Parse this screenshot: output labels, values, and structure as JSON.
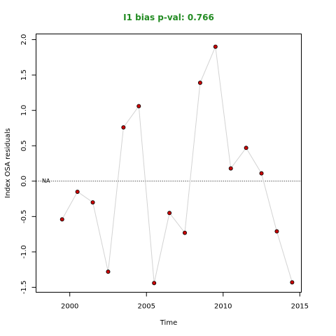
{
  "chart_data": {
    "type": "line",
    "title": "I1 bias p-val: 0.766",
    "xlabel": "Time",
    "ylabel": "Index OSA residuals",
    "xlim": [
      1997.8,
      2015.1
    ],
    "ylim": [
      -1.57,
      2.08
    ],
    "x_ticks": [
      2000,
      2005,
      2010,
      2015
    ],
    "y_ticks": [
      -1.5,
      -1.0,
      -0.5,
      0.0,
      0.5,
      1.0,
      1.5,
      2.0
    ],
    "x_tick_labels": [
      "2000",
      "2005",
      "2010",
      "2015"
    ],
    "y_tick_labels": [
      "-1.5",
      "-1.0",
      "-0.5",
      "0.0",
      "0.5",
      "1.0",
      "1.5",
      "2.0"
    ],
    "reference_line": 0,
    "annotation": "NA",
    "series": [
      {
        "x": [
          1999.5,
          2000.5,
          2001.5,
          2002.5,
          2003.5,
          2004.5,
          2005.5,
          2006.5,
          2007.5,
          2008.5,
          2009.5,
          2010.5,
          2011.5,
          2012.5,
          2013.5,
          2014.5
        ],
        "y": [
          -0.54,
          -0.15,
          -0.3,
          -1.28,
          0.76,
          1.06,
          -1.44,
          -0.45,
          -0.73,
          1.39,
          1.9,
          0.18,
          0.47,
          0.11,
          -0.71,
          -1.43
        ]
      }
    ],
    "colors": {
      "line": "#d3d3d3",
      "point_fill": "#cc0000",
      "point_stroke": "#000000",
      "title": "#228B22"
    },
    "grid": false,
    "legend": "none"
  }
}
